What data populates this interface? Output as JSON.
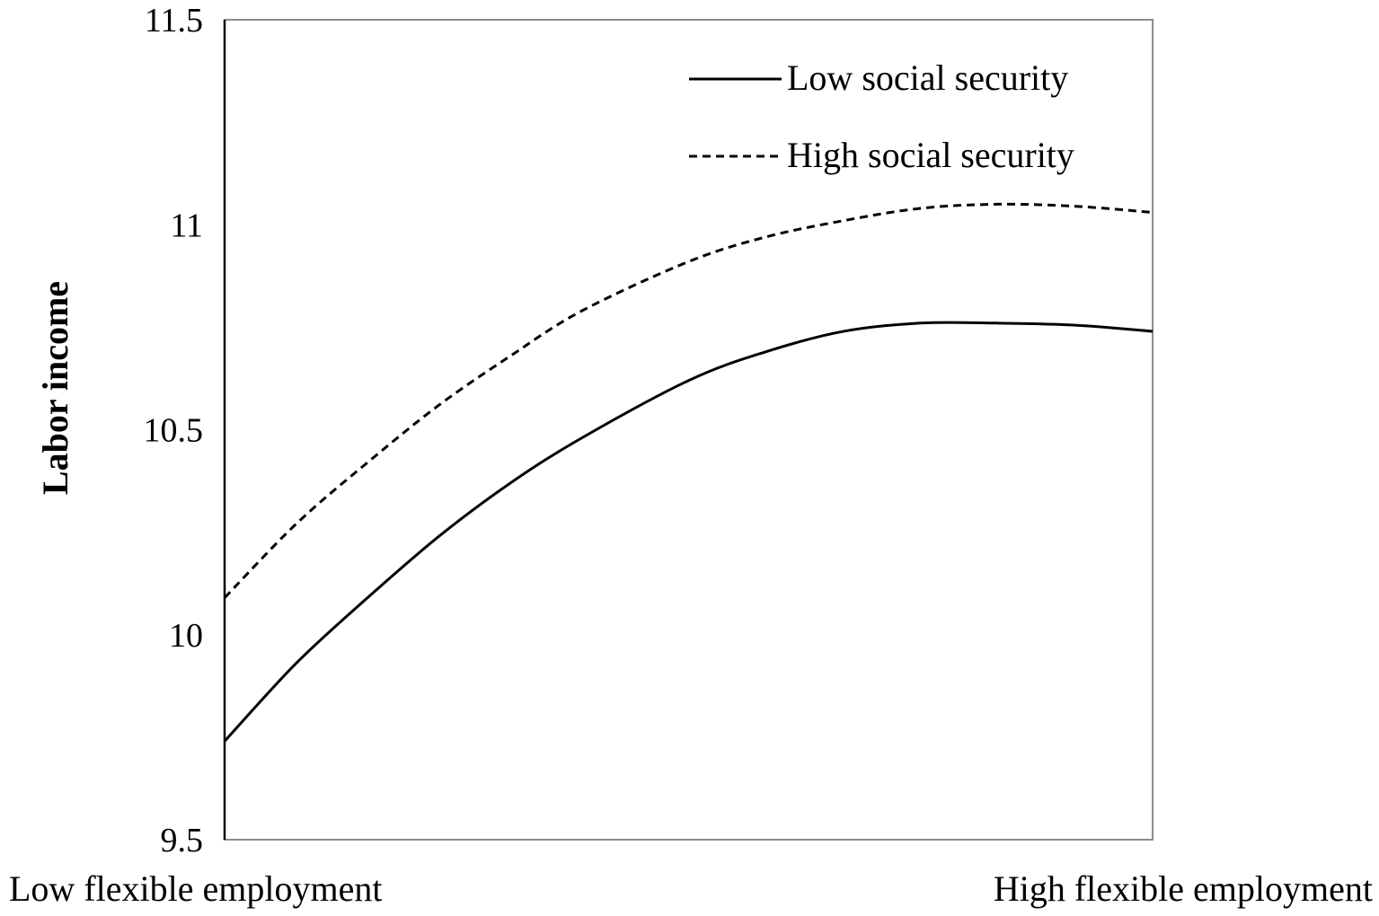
{
  "chart_data": {
    "type": "line",
    "title": "",
    "ylabel": "Labor income",
    "xlabel": "",
    "x_end_labels": {
      "left": "Low flexible employment",
      "right": "High flexible employment"
    },
    "ylim": [
      9.5,
      11.5
    ],
    "yticks": [
      "9.5",
      "10",
      "10.5",
      "11",
      "11.5"
    ],
    "ytick_values": [
      9.5,
      10,
      10.5,
      11,
      11.5
    ],
    "x": [
      0,
      0.077,
      0.154,
      0.231,
      0.308,
      0.385,
      0.5,
      0.583,
      0.667,
      0.75,
      0.833,
      0.917,
      1.0
    ],
    "series": [
      {
        "name": "Low social security",
        "style": "solid",
        "color": "#000000",
        "values": [
          9.74,
          9.93,
          10.09,
          10.24,
          10.37,
          10.48,
          10.62,
          10.69,
          10.74,
          10.76,
          10.76,
          10.755,
          10.74
        ]
      },
      {
        "name": "High social security",
        "style": "dashed",
        "color": "#000000",
        "values": [
          10.09,
          10.27,
          10.42,
          10.56,
          10.68,
          10.79,
          10.91,
          10.97,
          11.01,
          11.04,
          11.05,
          11.045,
          11.03
        ]
      }
    ],
    "grid": false,
    "legend_position": "top-right"
  }
}
